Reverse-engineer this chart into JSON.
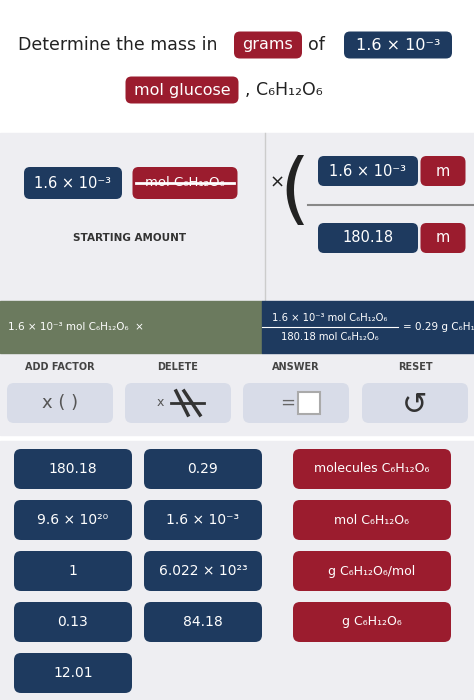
{
  "bg_top": "#ffffff",
  "bg_mid": "#eeeef2",
  "bg_equation_left": "#6b7a5e",
  "bg_equation_right": "#1e3a5f",
  "color_dark_blue": "#1e3a5f",
  "color_red": "#9b1c2e",
  "color_light_gray": "#d8dce8",
  "color_white": "#ffffff",
  "color_black": "#222222",
  "buttons_col1": [
    "180.18",
    "9.6 × 10²⁰",
    "1",
    "0.13",
    "12.01"
  ],
  "buttons_col2": [
    "0.29",
    "1.6 × 10⁻³",
    "6.022 × 10²³",
    "84.18"
  ],
  "buttons_col3": [
    "molecules C₆H₁₂O₆",
    "mol C₆H₁₂O₆",
    "g C₆H₁₂O₆/mol",
    "g C₆H₁₂O₆"
  ]
}
